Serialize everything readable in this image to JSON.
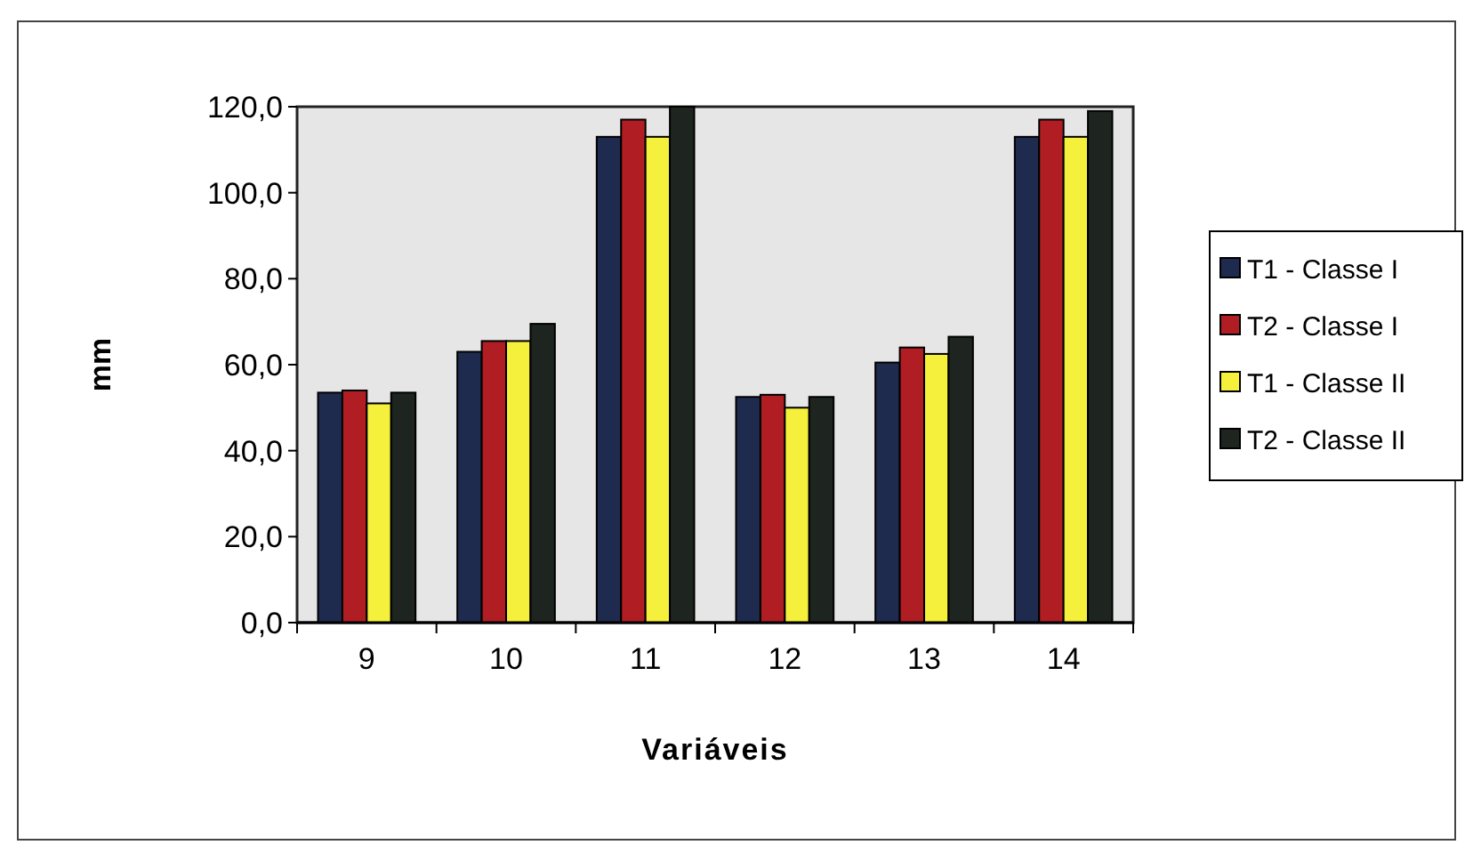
{
  "chart_data": {
    "type": "bar",
    "xlabel": "Variáveis",
    "ylabel": "mm",
    "categories": [
      "9",
      "10",
      "11",
      "12",
      "13",
      "14"
    ],
    "series": [
      {
        "name": "T1 - Classe I",
        "color": "#1f2a4f",
        "values": [
          53.5,
          63,
          113,
          52.5,
          60.5,
          113
        ]
      },
      {
        "name": "T2 - Classe I",
        "color": "#b01e24",
        "values": [
          54,
          65.5,
          117,
          53,
          64,
          117
        ]
      },
      {
        "name": "T1 - Classe II",
        "color": "#f5f03c",
        "values": [
          51,
          65.5,
          113,
          50,
          62.5,
          113
        ]
      },
      {
        "name": "T2 - Classe II",
        "color": "#1e2420",
        "values": [
          53.5,
          69.5,
          120,
          52.5,
          66.5,
          119
        ]
      }
    ],
    "ylim": [
      0,
      120
    ],
    "yticks": [
      {
        "value": 0,
        "label": "0,0"
      },
      {
        "value": 20,
        "label": "20,0"
      },
      {
        "value": 40,
        "label": "40,0"
      },
      {
        "value": 60,
        "label": "60,0"
      },
      {
        "value": 80,
        "label": "80,0"
      },
      {
        "value": 100,
        "label": "100,0"
      },
      {
        "value": 120,
        "label": "120,0"
      }
    ],
    "grid": false,
    "legend": "right"
  }
}
